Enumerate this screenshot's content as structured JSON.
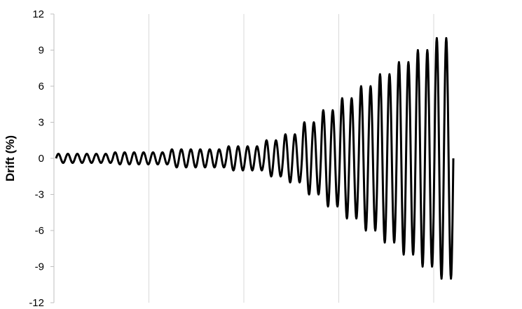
{
  "chart_data": {
    "type": "line",
    "title": "",
    "xlabel": "",
    "ylabel": "Drift (%)",
    "ylim": [
      -12,
      12
    ],
    "y_ticks": [
      "12",
      "9",
      "6",
      "3",
      "0",
      "-3",
      "-6",
      "-9",
      "-12"
    ],
    "y_tick_values": [
      12,
      9,
      6,
      3,
      0,
      -3,
      -6,
      -9,
      -12
    ],
    "x_tick_labels_shown": false,
    "x_gridlines": 4,
    "grid": "vertical",
    "line_color": "#000000",
    "series": [
      {
        "protocol": [
          {
            "cycles": 6,
            "amplitude": 0.375
          },
          {
            "cycles": 6,
            "amplitude": 0.5
          },
          {
            "cycles": 6,
            "amplitude": 0.75
          },
          {
            "cycles": 4,
            "amplitude": 1.0
          },
          {
            "cycles": 2,
            "amplitude": 1.5
          },
          {
            "cycles": 2,
            "amplitude": 2.0
          },
          {
            "cycles": 2,
            "amplitude": 3.0
          },
          {
            "cycles": 2,
            "amplitude": 4.0
          },
          {
            "cycles": 2,
            "amplitude": 5.0
          },
          {
            "cycles": 2,
            "amplitude": 6.0
          },
          {
            "cycles": 2,
            "amplitude": 7.0
          },
          {
            "cycles": 2,
            "amplitude": 8.0
          },
          {
            "cycles": 2,
            "amplitude": 9.0
          },
          {
            "cycles": 2,
            "amplitude": 10.0
          }
        ]
      }
    ]
  }
}
